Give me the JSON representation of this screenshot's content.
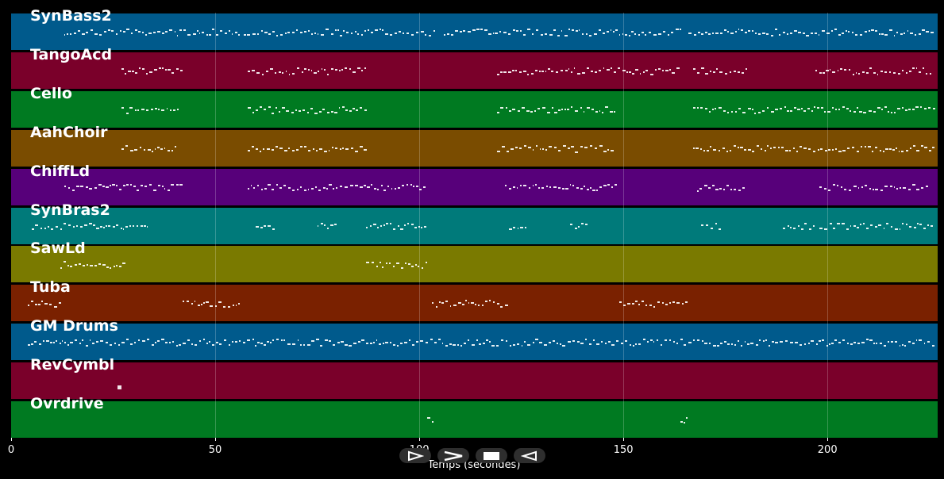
{
  "chart_data": {
    "type": "piano-roll",
    "xlabel": "Temps (secondes)",
    "xlim": [
      0,
      227
    ],
    "x_ticks": [
      0,
      50,
      100,
      150,
      200
    ],
    "grid": true,
    "tracks": [
      {
        "name": "SynBass2",
        "color": "#005a8c",
        "segments": [
          [
            13,
            56
          ],
          [
            57,
            104
          ],
          [
            106,
            164
          ],
          [
            166,
            226
          ]
        ]
      },
      {
        "name": "TangoAcd",
        "color": "#7a002a",
        "segments": [
          [
            27,
            42
          ],
          [
            58,
            87
          ],
          [
            119,
            164
          ],
          [
            167,
            181
          ],
          [
            197,
            226
          ]
        ]
      },
      {
        "name": "Cello",
        "color": "#007a21",
        "segments": [
          [
            27,
            41
          ],
          [
            58,
            87
          ],
          [
            119,
            148
          ],
          [
            167,
            226
          ]
        ]
      },
      {
        "name": "AahChoir",
        "color": "#7a4c00",
        "segments": [
          [
            27,
            41
          ],
          [
            58,
            87
          ],
          [
            119,
            148
          ],
          [
            167,
            226
          ]
        ]
      },
      {
        "name": "ChiffLd",
        "color": "#57007a",
        "segments": [
          [
            13,
            42
          ],
          [
            58,
            102
          ],
          [
            121,
            148
          ],
          [
            168,
            180
          ],
          [
            198,
            225
          ]
        ]
      },
      {
        "name": "SynBras2",
        "color": "#007a7a",
        "segments": [
          [
            5,
            34
          ],
          [
            60,
            65
          ],
          [
            75,
            80
          ],
          [
            87,
            102
          ],
          [
            122,
            126
          ],
          [
            137,
            141
          ],
          [
            169,
            174
          ],
          [
            189,
            197
          ],
          [
            198,
            226
          ]
        ]
      },
      {
        "name": "SawLd",
        "color": "#7a7a00",
        "segments": [
          [
            12,
            28
          ],
          [
            87,
            102
          ]
        ]
      },
      {
        "name": "Tuba",
        "color": "#7a2100",
        "segments": [
          [
            4,
            12
          ],
          [
            42,
            56
          ],
          [
            103,
            122
          ],
          [
            149,
            166
          ]
        ]
      },
      {
        "name": "GM Drums",
        "color": "#005a8c",
        "segments": [
          [
            4,
            226
          ]
        ]
      },
      {
        "name": "RevCymbl",
        "color": "#7a002a",
        "segments": [
          [
            26,
            27
          ]
        ]
      },
      {
        "name": "Ovrdrive",
        "color": "#007a21",
        "segments": [
          [
            102,
            104
          ],
          [
            164,
            166
          ]
        ]
      }
    ]
  },
  "controls": [
    {
      "name": "play-outline-button",
      "icon": "play-outline-icon"
    },
    {
      "name": "fast-forward-button",
      "icon": "chevron-right-icon"
    },
    {
      "name": "stop-button",
      "icon": "stop-icon"
    },
    {
      "name": "rewind-button",
      "icon": "rewind-outline-icon"
    }
  ]
}
